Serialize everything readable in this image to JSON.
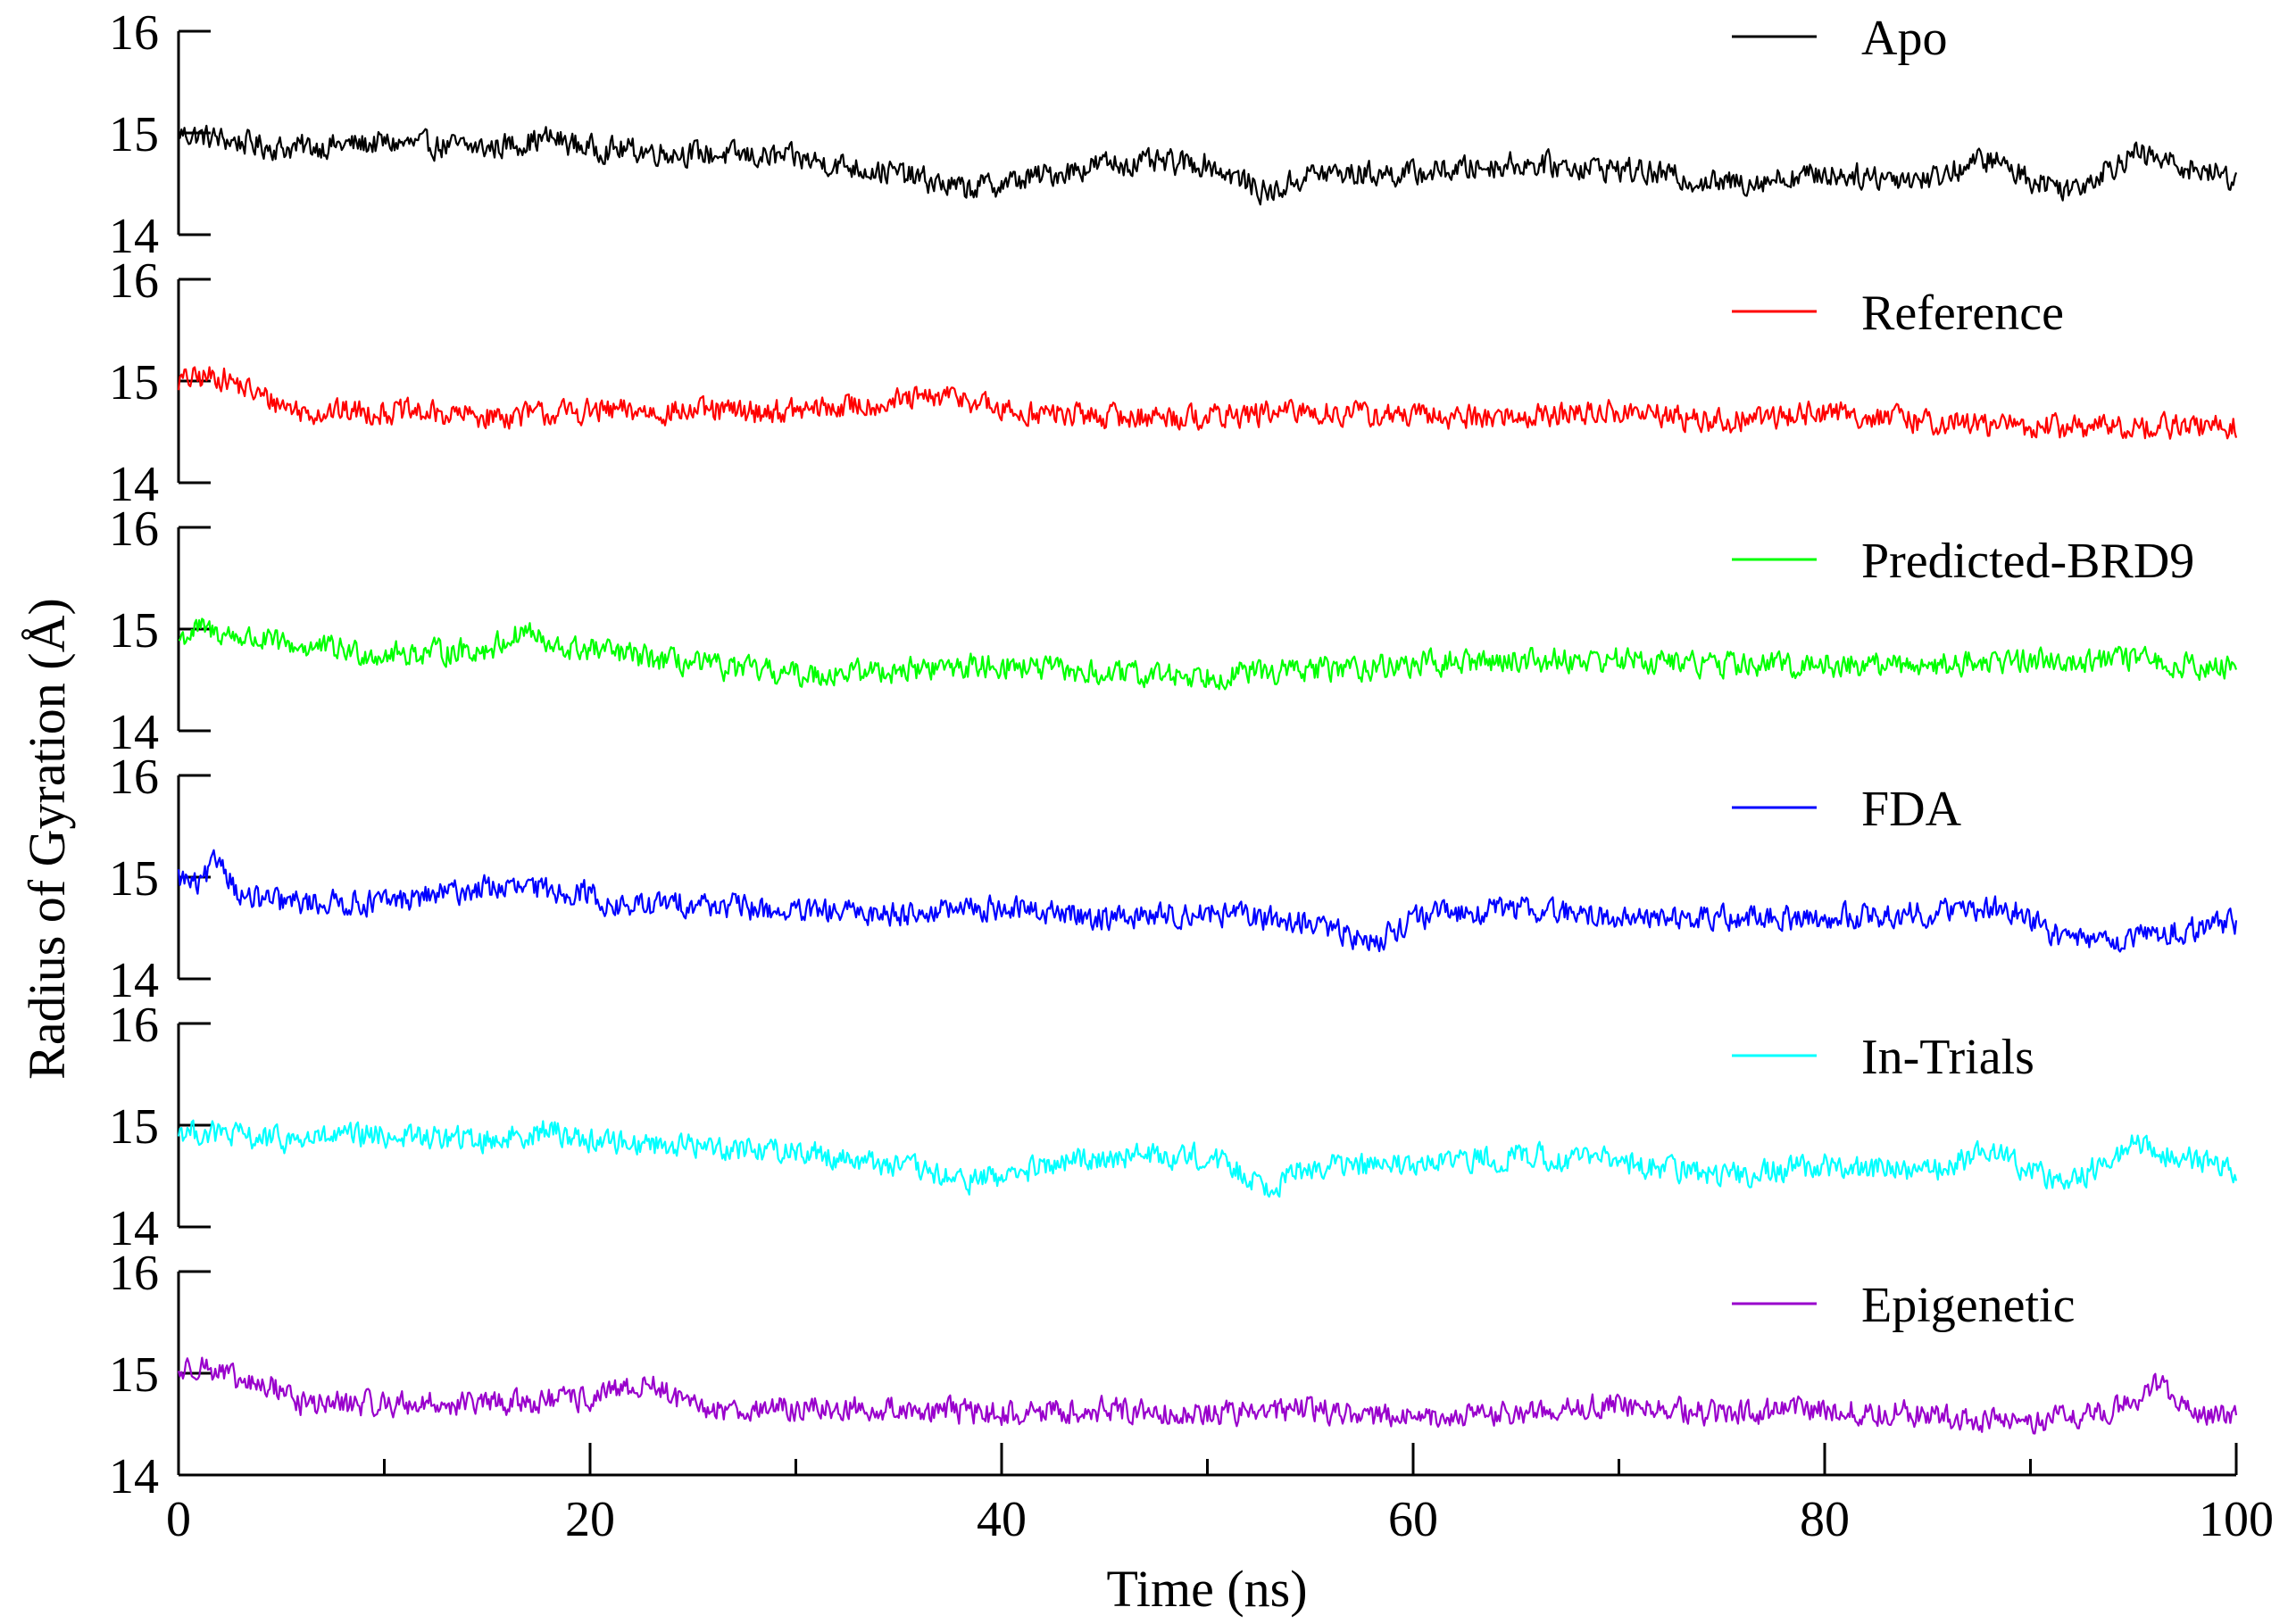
{
  "chart_data": {
    "type": "line",
    "xlabel": "Time (ns)",
    "ylabel": "Radius of Gyration (Å)",
    "x_range": [
      0,
      100
    ],
    "x_ticks": [
      "0",
      "20",
      "40",
      "60",
      "80",
      "100"
    ],
    "y_range": [
      14,
      16
    ],
    "y_ticks": [
      "14",
      "15",
      "16"
    ],
    "grid": false,
    "legend_position": "top-right of each panel",
    "series": [
      {
        "name": "Apo",
        "color": "#000000",
        "x": [
          0,
          5,
          10,
          15,
          18,
          20,
          25,
          30,
          35,
          38,
          40,
          45,
          50,
          53,
          55,
          60,
          65,
          70,
          75,
          80,
          85,
          88,
          90,
          92,
          95,
          100
        ],
        "y": [
          15.0,
          14.85,
          14.9,
          14.85,
          14.95,
          14.85,
          14.8,
          14.75,
          14.6,
          14.45,
          14.5,
          14.7,
          14.7,
          14.4,
          14.6,
          14.6,
          14.7,
          14.65,
          14.5,
          14.6,
          14.55,
          14.75,
          14.55,
          14.45,
          14.8,
          14.55
        ]
      },
      {
        "name": "Reference",
        "color": "#ff0000",
        "x": [
          0,
          2,
          4,
          6,
          10,
          15,
          20,
          25,
          30,
          35,
          38,
          40,
          45,
          50,
          55,
          60,
          65,
          70,
          75,
          80,
          85,
          90,
          95,
          100
        ],
        "y": [
          15.0,
          15.05,
          14.85,
          14.7,
          14.7,
          14.65,
          14.7,
          14.7,
          14.7,
          14.8,
          14.85,
          14.7,
          14.65,
          14.65,
          14.7,
          14.65,
          14.65,
          14.7,
          14.6,
          14.7,
          14.6,
          14.55,
          14.55,
          14.55
        ]
      },
      {
        "name": "Predicted-BRD9",
        "color": "#00ff00",
        "x": [
          0,
          1,
          5,
          10,
          15,
          17,
          18,
          20,
          25,
          30,
          35,
          40,
          45,
          50,
          55,
          60,
          65,
          70,
          75,
          80,
          85,
          90,
          95,
          100
        ],
        "y": [
          14.9,
          15.0,
          14.85,
          14.75,
          14.8,
          15.0,
          14.8,
          14.8,
          14.65,
          14.55,
          14.6,
          14.65,
          14.55,
          14.55,
          14.6,
          14.65,
          14.7,
          14.7,
          14.65,
          14.65,
          14.65,
          14.7,
          14.7,
          14.6
        ]
      },
      {
        "name": "FDA",
        "color": "#0000ff",
        "x": [
          0,
          1,
          2,
          3,
          5,
          10,
          15,
          20,
          21,
          25,
          30,
          35,
          40,
          45,
          50,
          55,
          58,
          60,
          65,
          70,
          75,
          80,
          85,
          89,
          92,
          95,
          100
        ],
        "y": [
          15.0,
          14.9,
          15.2,
          14.8,
          14.75,
          14.75,
          14.9,
          14.85,
          14.7,
          14.75,
          14.65,
          14.65,
          14.7,
          14.6,
          14.65,
          14.55,
          14.35,
          14.6,
          14.7,
          14.6,
          14.6,
          14.6,
          14.65,
          14.7,
          14.35,
          14.4,
          14.55
        ]
      },
      {
        "name": "In-Trials",
        "color": "#00ffff",
        "x": [
          0,
          5,
          10,
          15,
          18,
          20,
          25,
          30,
          35,
          38,
          40,
          45,
          50,
          53,
          55,
          60,
          65,
          70,
          75,
          80,
          85,
          88,
          90,
          92,
          95,
          100
        ],
        "y": [
          14.95,
          14.85,
          14.9,
          14.85,
          14.95,
          14.85,
          14.8,
          14.75,
          14.6,
          14.45,
          14.5,
          14.7,
          14.7,
          14.4,
          14.6,
          14.6,
          14.7,
          14.65,
          14.5,
          14.6,
          14.55,
          14.75,
          14.55,
          14.45,
          14.8,
          14.55
        ]
      },
      {
        "name": "Epigenetic",
        "color": "#9900cc",
        "x": [
          0,
          1,
          3,
          5,
          6,
          10,
          15,
          20,
          23,
          25,
          30,
          35,
          40,
          45,
          50,
          55,
          60,
          65,
          70,
          75,
          80,
          85,
          90,
          93,
          95,
          96,
          98,
          100
        ],
        "y": [
          15.0,
          15.1,
          14.9,
          14.85,
          14.7,
          14.7,
          14.7,
          14.75,
          14.9,
          14.65,
          14.65,
          14.65,
          14.6,
          14.65,
          14.6,
          14.65,
          14.55,
          14.6,
          14.7,
          14.6,
          14.65,
          14.6,
          14.5,
          14.6,
          14.7,
          14.9,
          14.65,
          14.55
        ]
      }
    ]
  }
}
